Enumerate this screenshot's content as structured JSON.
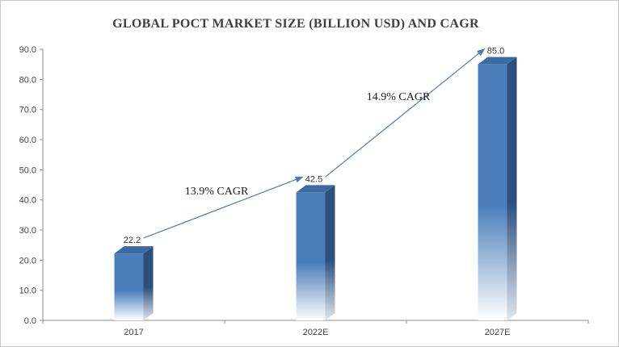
{
  "chart_data": {
    "type": "bar",
    "title": "GLOBAL POCT MARKET SIZE (BILLION USD) AND CAGR",
    "categories": [
      "2017",
      "2022E",
      "2027E"
    ],
    "values": [
      22.2,
      42.5,
      85.0
    ],
    "value_labels": [
      "22.2",
      "42.5",
      "85.0"
    ],
    "xlabel": "",
    "ylabel": "",
    "ylim": [
      0,
      90
    ],
    "yticks": [
      "0.0",
      "10.0",
      "20.0",
      "30.0",
      "40.0",
      "50.0",
      "60.0",
      "70.0",
      "80.0",
      "90.0"
    ],
    "grid": false,
    "legend": "none",
    "bar_color": "#4a7ebb",
    "annotations": [
      {
        "text": "13.9% CAGR",
        "from": 0,
        "to": 1
      },
      {
        "text": "14.9% CAGR",
        "from": 1,
        "to": 2
      }
    ]
  }
}
